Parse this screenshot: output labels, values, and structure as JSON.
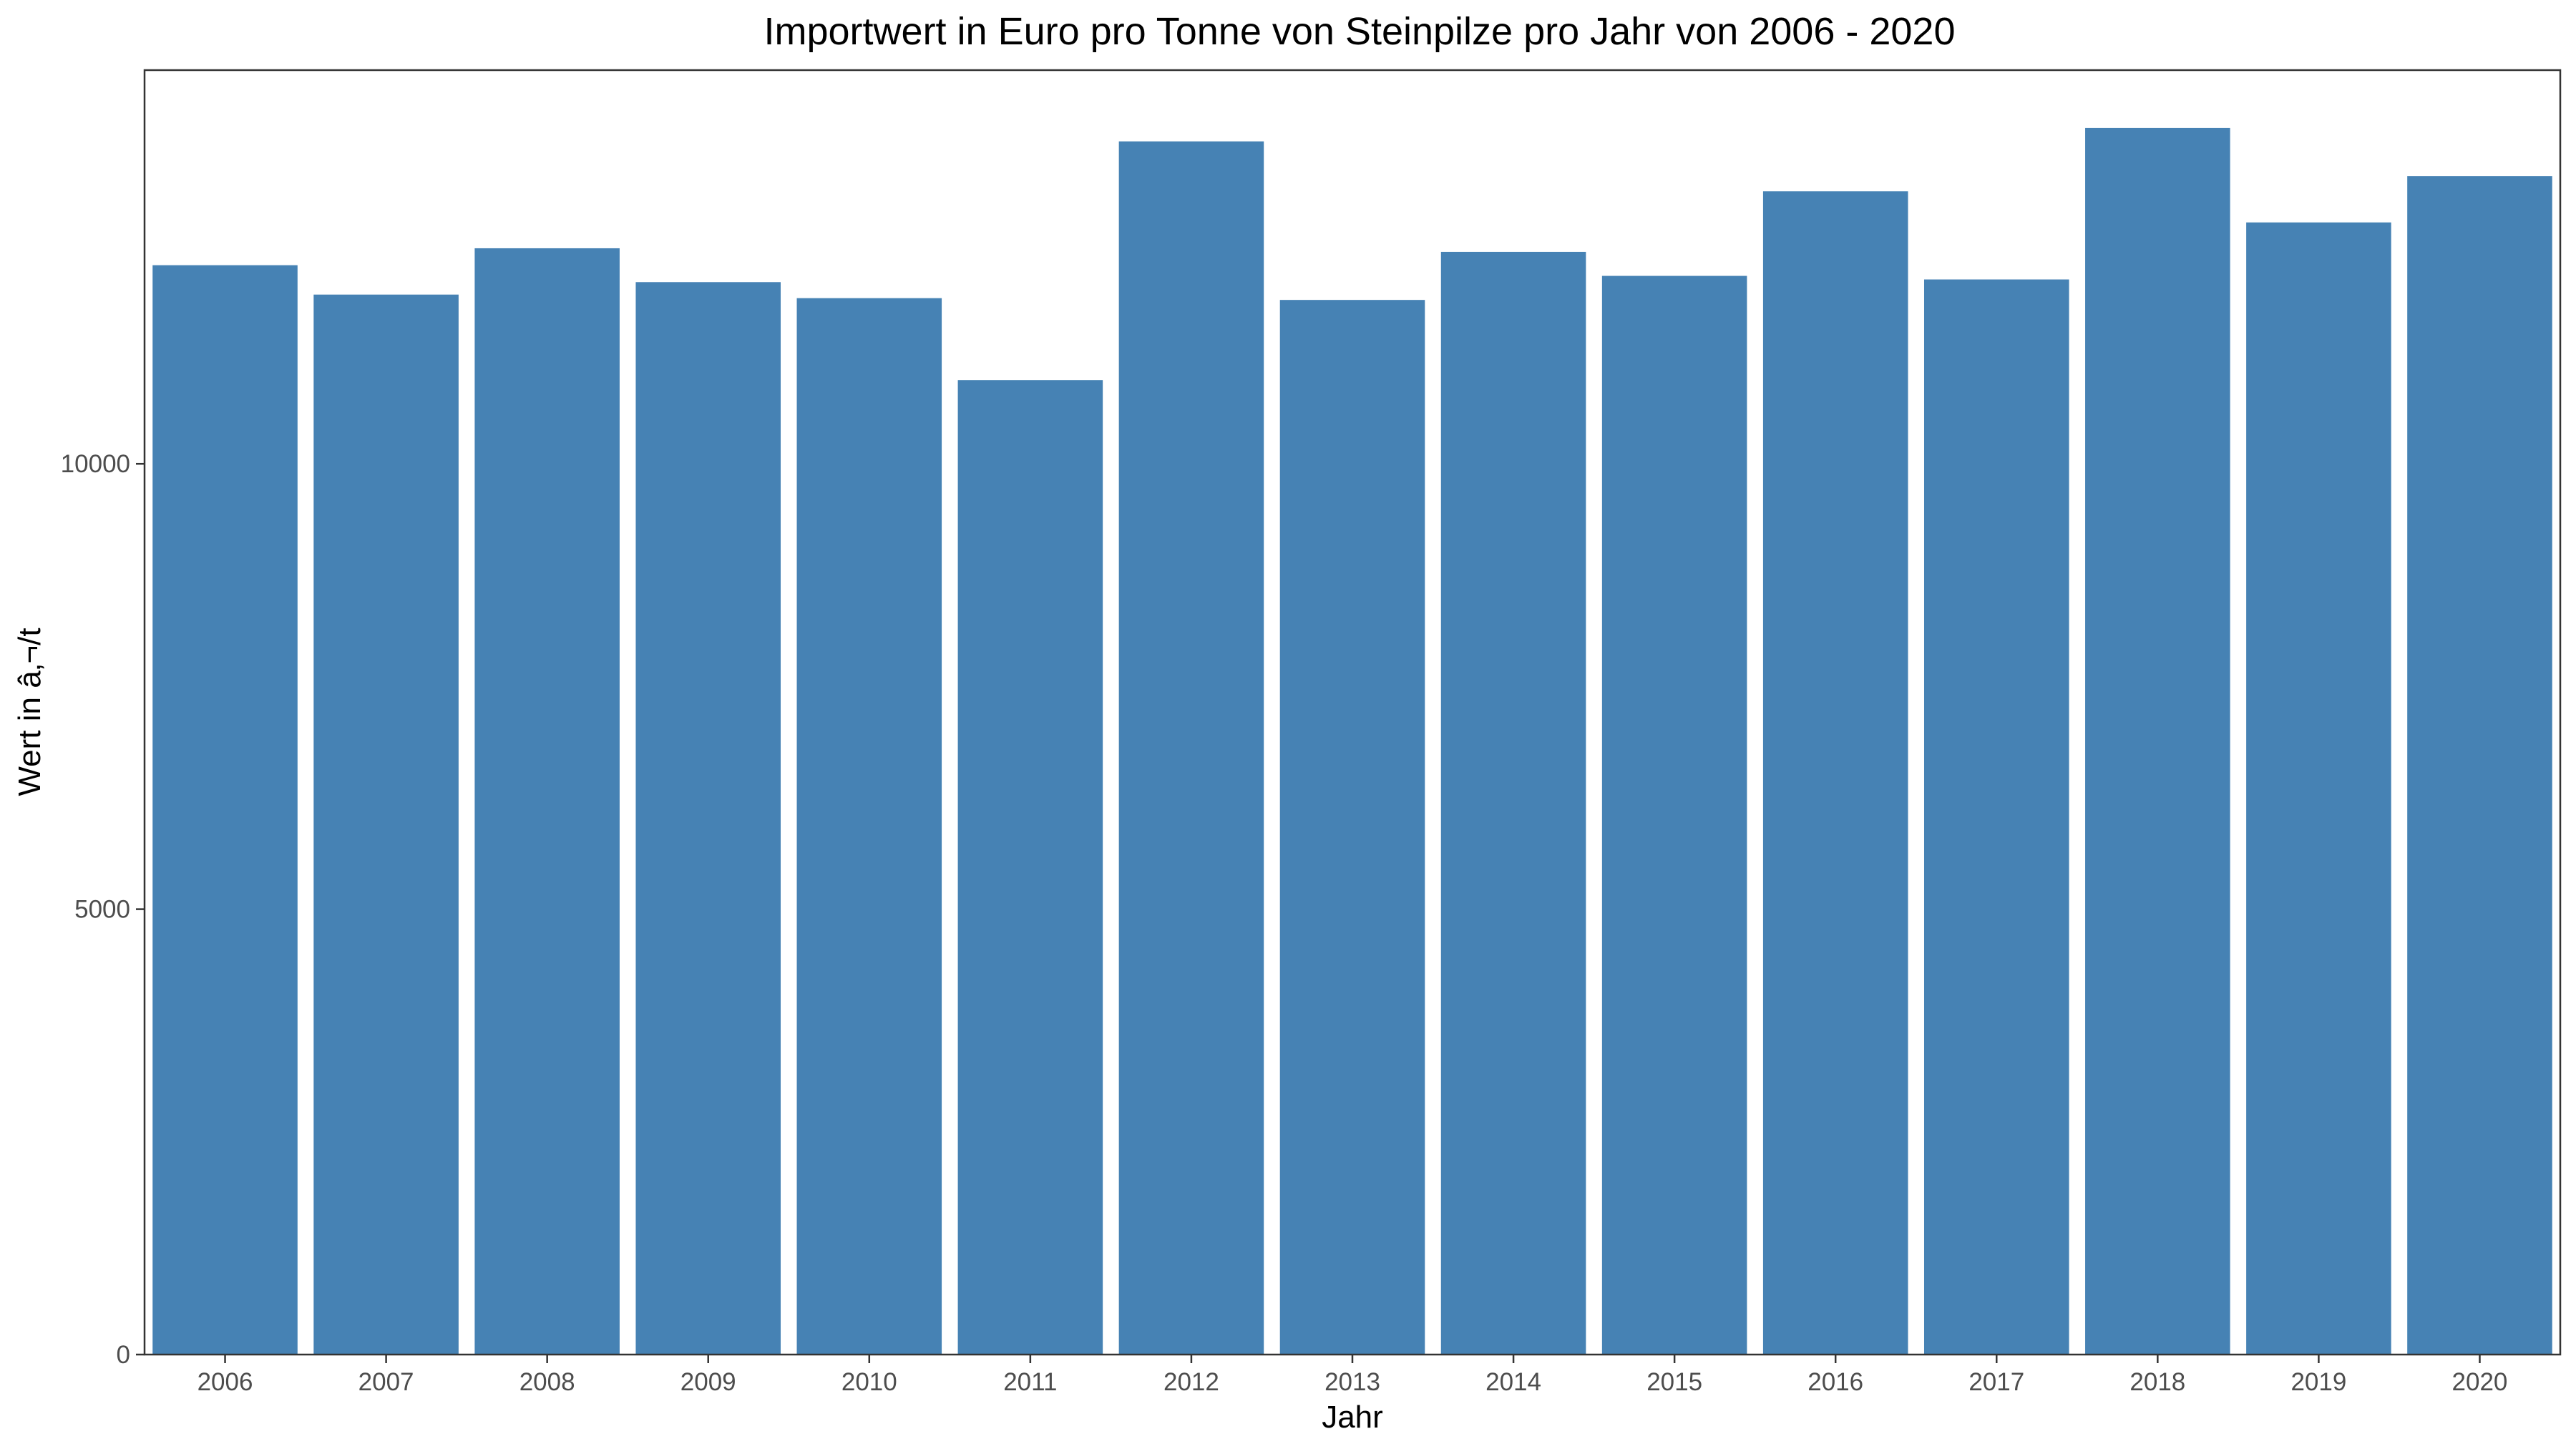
{
  "chart_data": {
    "type": "bar",
    "title": "Importwert in Euro pro Tonne von Steinpilze pro Jahr von 2006 - 2020",
    "xlabel": "Jahr",
    "ylabel": "Wert in â‚¬/t",
    "categories": [
      "2006",
      "2007",
      "2008",
      "2009",
      "2010",
      "2011",
      "2012",
      "2013",
      "2014",
      "2015",
      "2016",
      "2017",
      "2018",
      "2019",
      "2020"
    ],
    "values": [
      12230,
      11900,
      12420,
      12040,
      11860,
      10940,
      13620,
      11840,
      12380,
      12110,
      13060,
      12070,
      13770,
      12710,
      13230
    ],
    "ylim": [
      0,
      14420
    ],
    "yticks": [
      0,
      5000,
      10000
    ],
    "ytick_labels": [
      "0",
      "5000",
      "10000"
    ],
    "grid": false,
    "legend": "none",
    "bar_color": "#4682B4",
    "axis_color": "#333333",
    "tick_label_color": "#4d4d4d"
  }
}
